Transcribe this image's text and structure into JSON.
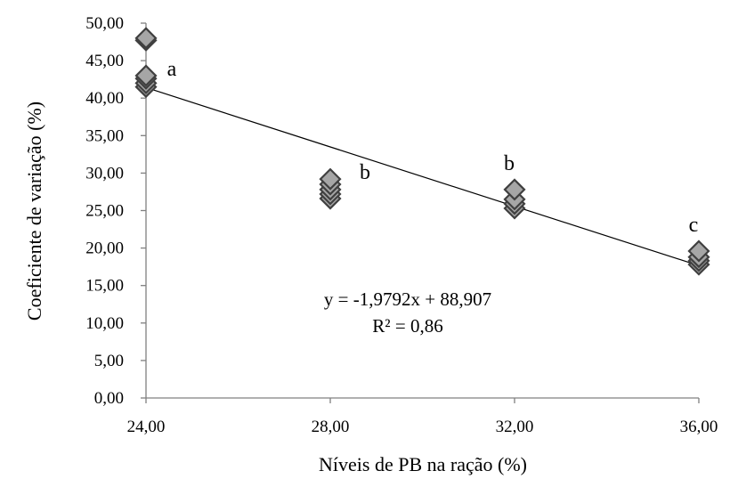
{
  "chart_data": {
    "type": "scatter",
    "title": "",
    "xlabel": "Níveis de PB na ração (%)",
    "ylabel": "Coeficiente de variação (%)",
    "xlim": [
      24,
      36
    ],
    "ylim": [
      0,
      50
    ],
    "x_ticks": [
      24,
      28,
      32,
      36
    ],
    "x_tick_labels": [
      "24,00",
      "28,00",
      "32,00",
      "36,00"
    ],
    "y_ticks": [
      0,
      5,
      10,
      15,
      20,
      25,
      30,
      35,
      40,
      45,
      50
    ],
    "y_tick_labels": [
      "0,00",
      "5,00",
      "10,00",
      "15,00",
      "20,00",
      "25,00",
      "30,00",
      "35,00",
      "40,00",
      "45,00",
      "50,00"
    ],
    "grid": false,
    "legend": "none",
    "marker": "diamond",
    "marker_fill": "#a6a6a6",
    "marker_stroke": "#404040",
    "series": [
      {
        "points": [
          {
            "x": 24,
            "y": 48.0
          },
          {
            "x": 24,
            "y": 47.7
          },
          {
            "x": 24,
            "y": 43.0
          },
          {
            "x": 24,
            "y": 42.6
          },
          {
            "x": 24,
            "y": 42.0
          },
          {
            "x": 24,
            "y": 41.5
          },
          {
            "x": 28,
            "y": 29.2
          },
          {
            "x": 28,
            "y": 28.5
          },
          {
            "x": 28,
            "y": 27.8
          },
          {
            "x": 28,
            "y": 27.2
          },
          {
            "x": 28,
            "y": 26.6
          },
          {
            "x": 32,
            "y": 27.8
          },
          {
            "x": 32,
            "y": 26.5
          },
          {
            "x": 32,
            "y": 25.9
          },
          {
            "x": 32,
            "y": 25.3
          },
          {
            "x": 36,
            "y": 19.6
          },
          {
            "x": 36,
            "y": 18.8
          },
          {
            "x": 36,
            "y": 18.3
          },
          {
            "x": 36,
            "y": 17.8
          }
        ]
      }
    ],
    "trendline": {
      "slope": -1.9792,
      "intercept": 88.907,
      "x_range": [
        24,
        36
      ],
      "color": "#000000"
    },
    "equation_lines": [
      "y = -1,9792x + 88,907",
      "R² = 0,86"
    ],
    "group_labels": [
      {
        "x": 24,
        "y": 43.0,
        "text": "a"
      },
      {
        "x": 28,
        "y": 29.2,
        "text": "b"
      },
      {
        "x": 32,
        "y": 27.8,
        "text": "b"
      },
      {
        "x": 36,
        "y": 19.6,
        "text": "c"
      }
    ]
  }
}
